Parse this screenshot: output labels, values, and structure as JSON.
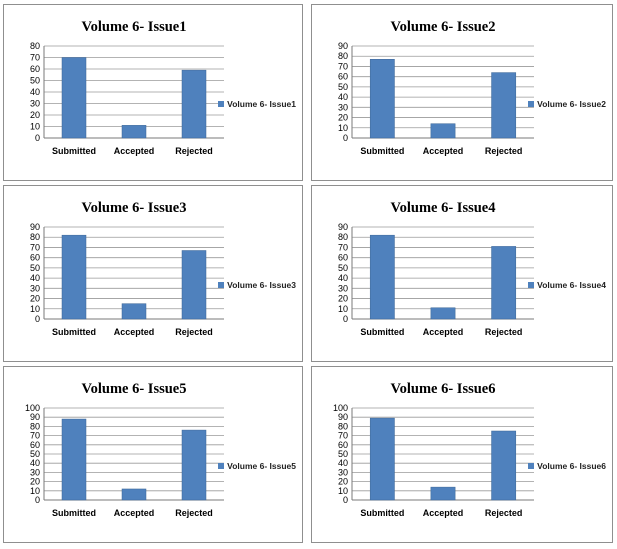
{
  "colors": {
    "bar": "#4f81bd",
    "bar_edge": "#3a6596",
    "grid": "#9a9a9a",
    "axis": "#7a7a7a",
    "panel_border": "#8f8f8f"
  },
  "chart_data": [
    {
      "type": "bar",
      "title": "Volume 6- Issue1",
      "categories": [
        "Submitted",
        "Accepted",
        "Rejected"
      ],
      "series": [
        {
          "name": "Volume 6- Issue1",
          "values": [
            70,
            11,
            59
          ]
        }
      ],
      "ylim": [
        0,
        80
      ],
      "ystep": 10,
      "yticks": [
        "0",
        "10",
        "20",
        "30",
        "40",
        "50",
        "60",
        "70",
        "80"
      ],
      "grid": true,
      "legend": "right"
    },
    {
      "type": "bar",
      "title": "Volume 6- Issue2",
      "categories": [
        "Submitted",
        "Accepted",
        "Rejected"
      ],
      "series": [
        {
          "name": "Volume 6- Issue2",
          "values": [
            77,
            14,
            64
          ]
        }
      ],
      "ylim": [
        0,
        90
      ],
      "ystep": 10,
      "yticks": [
        "0",
        "10",
        "20",
        "30",
        "40",
        "50",
        "60",
        "70",
        "80",
        "90"
      ],
      "grid": true,
      "legend": "right"
    },
    {
      "type": "bar",
      "title": "Volume 6- Issue3",
      "categories": [
        "Submitted",
        "Accepted",
        "Rejected"
      ],
      "series": [
        {
          "name": "Volume 6- Issue3",
          "values": [
            82,
            15,
            67
          ]
        }
      ],
      "ylim": [
        0,
        90
      ],
      "ystep": 10,
      "yticks": [
        "0",
        "10",
        "20",
        "30",
        "40",
        "50",
        "60",
        "70",
        "80",
        "90"
      ],
      "grid": true,
      "legend": "right"
    },
    {
      "type": "bar",
      "title": "Volume 6- Issue4",
      "categories": [
        "Submitted",
        "Accepted",
        "Rejected"
      ],
      "series": [
        {
          "name": "Volume 6- Issue4",
          "values": [
            82,
            11,
            71
          ]
        }
      ],
      "ylim": [
        0,
        90
      ],
      "ystep": 10,
      "yticks": [
        "0",
        "10",
        "20",
        "30",
        "40",
        "50",
        "60",
        "70",
        "80",
        "90"
      ],
      "grid": true,
      "legend": "right"
    },
    {
      "type": "bar",
      "title": "Volume 6- Issue5",
      "categories": [
        "Submitted",
        "Accepted",
        "Rejected"
      ],
      "series": [
        {
          "name": "Volume 6- Issue5",
          "values": [
            88,
            12,
            76
          ]
        }
      ],
      "ylim": [
        0,
        100
      ],
      "ystep": 10,
      "yticks": [
        "0",
        "10",
        "20",
        "30",
        "40",
        "50",
        "60",
        "70",
        "80",
        "90",
        "100"
      ],
      "grid": true,
      "legend": "right"
    },
    {
      "type": "bar",
      "title": "Volume 6- Issue6",
      "categories": [
        "Submitted",
        "Accepted",
        "Rejected"
      ],
      "series": [
        {
          "name": "Volume 6- Issue6",
          "values": [
            89,
            14,
            75
          ]
        }
      ],
      "ylim": [
        0,
        100
      ],
      "ystep": 10,
      "yticks": [
        "0",
        "10",
        "20",
        "30",
        "40",
        "50",
        "60",
        "70",
        "80",
        "90",
        "100"
      ],
      "grid": true,
      "legend": "right"
    }
  ]
}
